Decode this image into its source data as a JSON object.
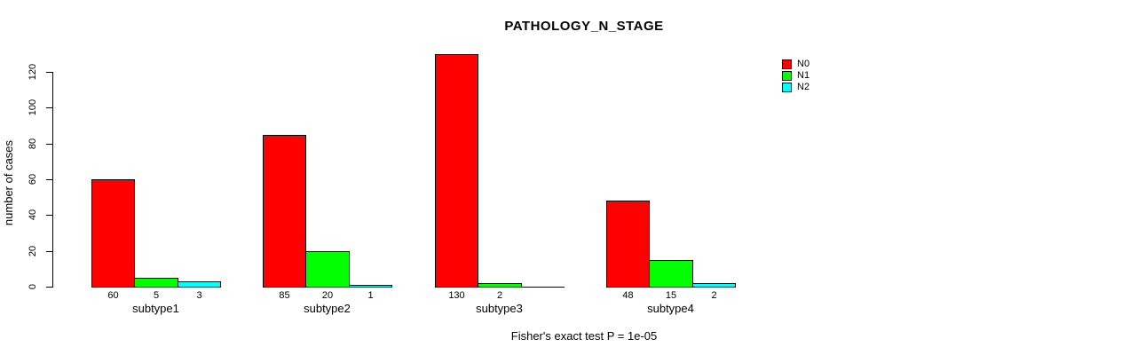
{
  "chart_data": {
    "type": "bar",
    "title": "PATHOLOGY_N_STAGE",
    "ylabel": "number of cases",
    "xlabel": "",
    "footnote": "Fisher's exact test P = 1e-05",
    "categories": [
      "subtype1",
      "subtype2",
      "subtype3",
      "subtype4"
    ],
    "series": [
      {
        "name": "N0",
        "color": "#ff0000",
        "values": [
          60,
          85,
          130,
          48
        ]
      },
      {
        "name": "N1",
        "color": "#00ff00",
        "values": [
          5,
          20,
          2,
          15
        ]
      },
      {
        "name": "N2",
        "color": "#00ffff",
        "values": [
          3,
          1,
          0,
          2
        ]
      }
    ],
    "bar_value_labels": [
      [
        "60",
        "5",
        "3"
      ],
      [
        "85",
        "20",
        "1"
      ],
      [
        "130",
        "2",
        ""
      ],
      [
        "48",
        "15",
        "2"
      ]
    ],
    "yticks": [
      0,
      20,
      40,
      60,
      80,
      100,
      120
    ],
    "ylim": [
      0,
      130
    ],
    "grid": false,
    "legend_position": "top-right",
    "background_color": "#ffffff"
  }
}
